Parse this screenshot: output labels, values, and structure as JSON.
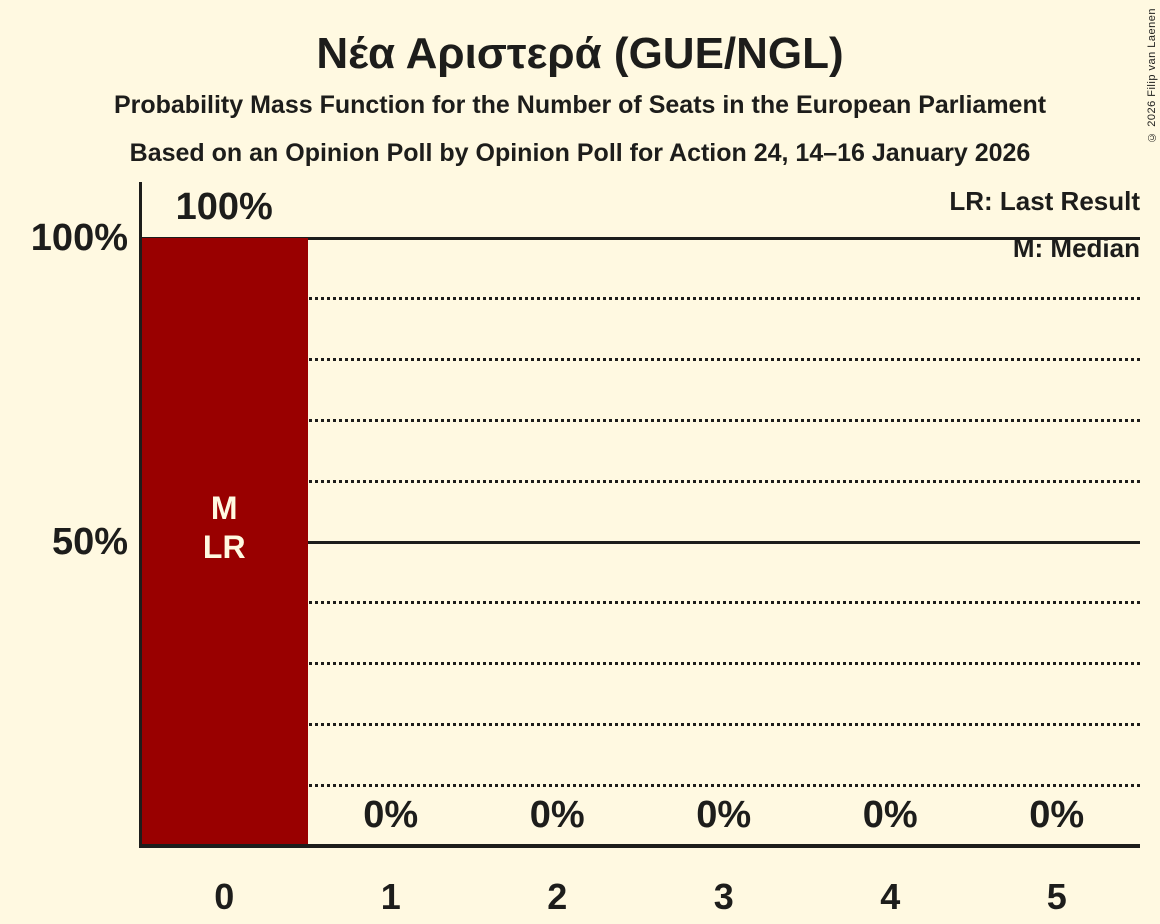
{
  "header": {
    "title": "Νέα Αριστερά (GUE/NGL)",
    "subtitle": "Probability Mass Function for the Number of Seats in the European Parliament",
    "sub_subtitle": "Based on an Opinion Poll by Opinion Poll for Action 24, 14–16 January 2026"
  },
  "legend": {
    "last_result": "LR: Last Result",
    "median": "M: Median"
  },
  "copyright": "© 2026 Filip van Laenen",
  "colors": {
    "background": "#FFF9E1",
    "bar": "#990000",
    "text": "#1D1D1B",
    "bar_annotation_text": "#FFF9E1"
  },
  "chart_data": {
    "type": "bar",
    "categories": [
      "0",
      "1",
      "2",
      "3",
      "4",
      "5"
    ],
    "values": [
      100,
      0,
      0,
      0,
      0,
      0
    ],
    "value_labels": [
      "100%",
      "0%",
      "0%",
      "0%",
      "0%",
      "0%"
    ],
    "annotations": [
      [
        "M",
        "LR"
      ],
      [],
      [],
      [],
      [],
      []
    ],
    "median": 0,
    "last_result": 0,
    "ylim": [
      0,
      100
    ],
    "y_ticks": [
      {
        "value": 100,
        "label": "100%"
      },
      {
        "value": 50,
        "label": "50%"
      }
    ],
    "gridlines": [
      {
        "value": 100,
        "style": "solid"
      },
      {
        "value": 90,
        "style": "dotted"
      },
      {
        "value": 80,
        "style": "dotted"
      },
      {
        "value": 70,
        "style": "dotted"
      },
      {
        "value": 60,
        "style": "dotted"
      },
      {
        "value": 50,
        "style": "solid"
      },
      {
        "value": 40,
        "style": "dotted"
      },
      {
        "value": 30,
        "style": "dotted"
      },
      {
        "value": 20,
        "style": "dotted"
      },
      {
        "value": 10,
        "style": "dotted"
      }
    ],
    "legend_position": "top-right",
    "grid": true
  }
}
